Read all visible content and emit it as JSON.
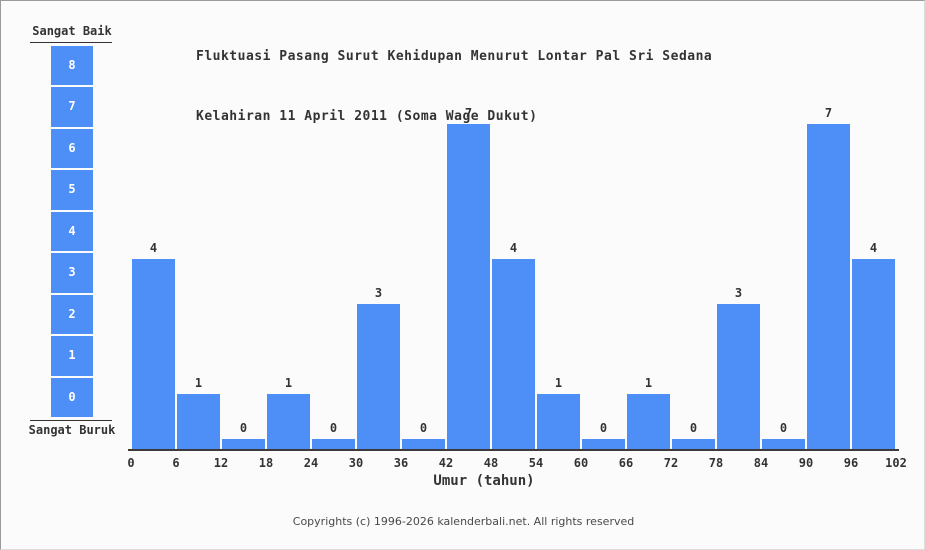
{
  "title": {
    "line1": "Fluktuasi Pasang Surut Kehidupan Menurut Lontar Pal Sri Sedana",
    "line2": "Kelahiran 11 April 2011 (Soma Wage Dukut)"
  },
  "legend": {
    "top_label": "Sangat Baik",
    "bottom_label": "Sangat Buruk",
    "scale_values": [
      "8",
      "7",
      "6",
      "5",
      "4",
      "3",
      "2",
      "1",
      "0"
    ]
  },
  "chart_data": {
    "type": "bar",
    "title": "Fluktuasi Pasang Surut Kehidupan Menurut Lontar Pal Sri Sedana Kelahiran 11 April 2011 (Soma Wage Dukut)",
    "xlabel": "Umur (tahun)",
    "ylabel": "",
    "x_tick_labels": [
      "0",
      "6",
      "12",
      "18",
      "24",
      "30",
      "36",
      "42",
      "48",
      "54",
      "60",
      "66",
      "72",
      "78",
      "84",
      "90",
      "96",
      "102"
    ],
    "categories": [
      "0-6",
      "6-12",
      "12-18",
      "18-24",
      "24-30",
      "30-36",
      "36-42",
      "42-48",
      "48-54",
      "54-60",
      "60-66",
      "66-72",
      "72-78",
      "78-84",
      "84-90",
      "90-96",
      "96-102"
    ],
    "values": [
      4,
      1,
      0,
      1,
      0,
      3,
      0,
      7,
      4,
      1,
      0,
      1,
      0,
      3,
      0,
      7,
      4
    ],
    "ylim": [
      0,
      8
    ],
    "grid": false,
    "legend_position": "left",
    "bar_color": "#4d8ef7",
    "axis_color": "#3b3b3b",
    "text_color": "#333333",
    "background_color": "#fbfbfb"
  },
  "footer": {
    "copyright": "Copyrights (c) 1996-2026 kalenderbali.net. All rights reserved"
  }
}
